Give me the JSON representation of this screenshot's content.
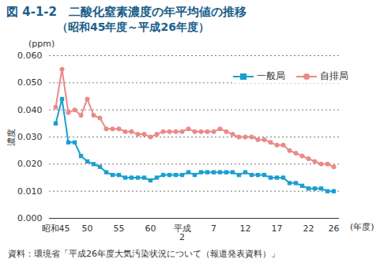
{
  "chart_data": {
    "type": "line",
    "title": "図 4-1-2　二酸化窒素濃度の年平均値の推移",
    "subtitle": "（昭和45年度～平成26年度）",
    "y_unit_label": "(ppm)",
    "ylabel": "濃度",
    "xlabel": "(年度)",
    "caption": "資料：環境省「平成26年度大気汚染状況について（報道発表資料）」",
    "categories": [
      "昭和45",
      null,
      null,
      null,
      null,
      "50",
      null,
      null,
      null,
      null,
      "55",
      null,
      null,
      null,
      null,
      "60",
      null,
      null,
      null,
      null,
      "平成\n2",
      null,
      null,
      null,
      null,
      "7",
      null,
      null,
      null,
      null,
      "12",
      null,
      null,
      null,
      null,
      "17",
      null,
      null,
      null,
      null,
      "22",
      null,
      null,
      null,
      "26"
    ],
    "series": [
      {
        "name": "一般局",
        "color": "#1b9fcf",
        "marker": "square",
        "values": [
          0.035,
          0.044,
          0.028,
          0.028,
          0.023,
          0.021,
          0.02,
          0.019,
          0.017,
          0.016,
          0.016,
          0.015,
          0.015,
          0.015,
          0.015,
          0.014,
          0.015,
          0.016,
          0.016,
          0.016,
          0.016,
          0.017,
          0.016,
          0.017,
          0.017,
          0.017,
          0.017,
          0.017,
          0.017,
          0.016,
          0.017,
          0.016,
          0.016,
          0.016,
          0.015,
          0.015,
          0.015,
          0.013,
          0.013,
          0.012,
          0.011,
          0.011,
          0.011,
          0.01,
          0.01
        ]
      },
      {
        "name": "自排局",
        "color": "#ea8a86",
        "marker": "circle",
        "values": [
          0.041,
          0.055,
          0.039,
          0.04,
          0.038,
          0.044,
          0.038,
          0.037,
          0.033,
          0.033,
          0.033,
          0.032,
          0.032,
          0.031,
          0.031,
          0.03,
          0.031,
          0.032,
          0.032,
          0.032,
          0.032,
          0.033,
          0.032,
          0.032,
          0.032,
          0.032,
          0.033,
          0.032,
          0.031,
          0.03,
          0.03,
          0.03,
          0.029,
          0.029,
          0.028,
          0.027,
          0.027,
          0.025,
          0.024,
          0.023,
          0.022,
          0.021,
          0.02,
          0.02,
          0.019
        ]
      }
    ],
    "ylim": [
      0,
      0.06
    ],
    "yticks": [
      {
        "value": 0,
        "label": "0.000"
      },
      {
        "value": 0.01,
        "label": "0.010"
      },
      {
        "value": 0.02,
        "label": "0.020"
      },
      {
        "value": 0.03,
        "label": "0.030"
      },
      {
        "value": 0.04,
        "label": "0.040"
      },
      {
        "value": 0.05,
        "label": "0.050"
      },
      {
        "value": 0.06,
        "label": "0.060"
      }
    ],
    "grid": true,
    "legend": "top-right"
  }
}
